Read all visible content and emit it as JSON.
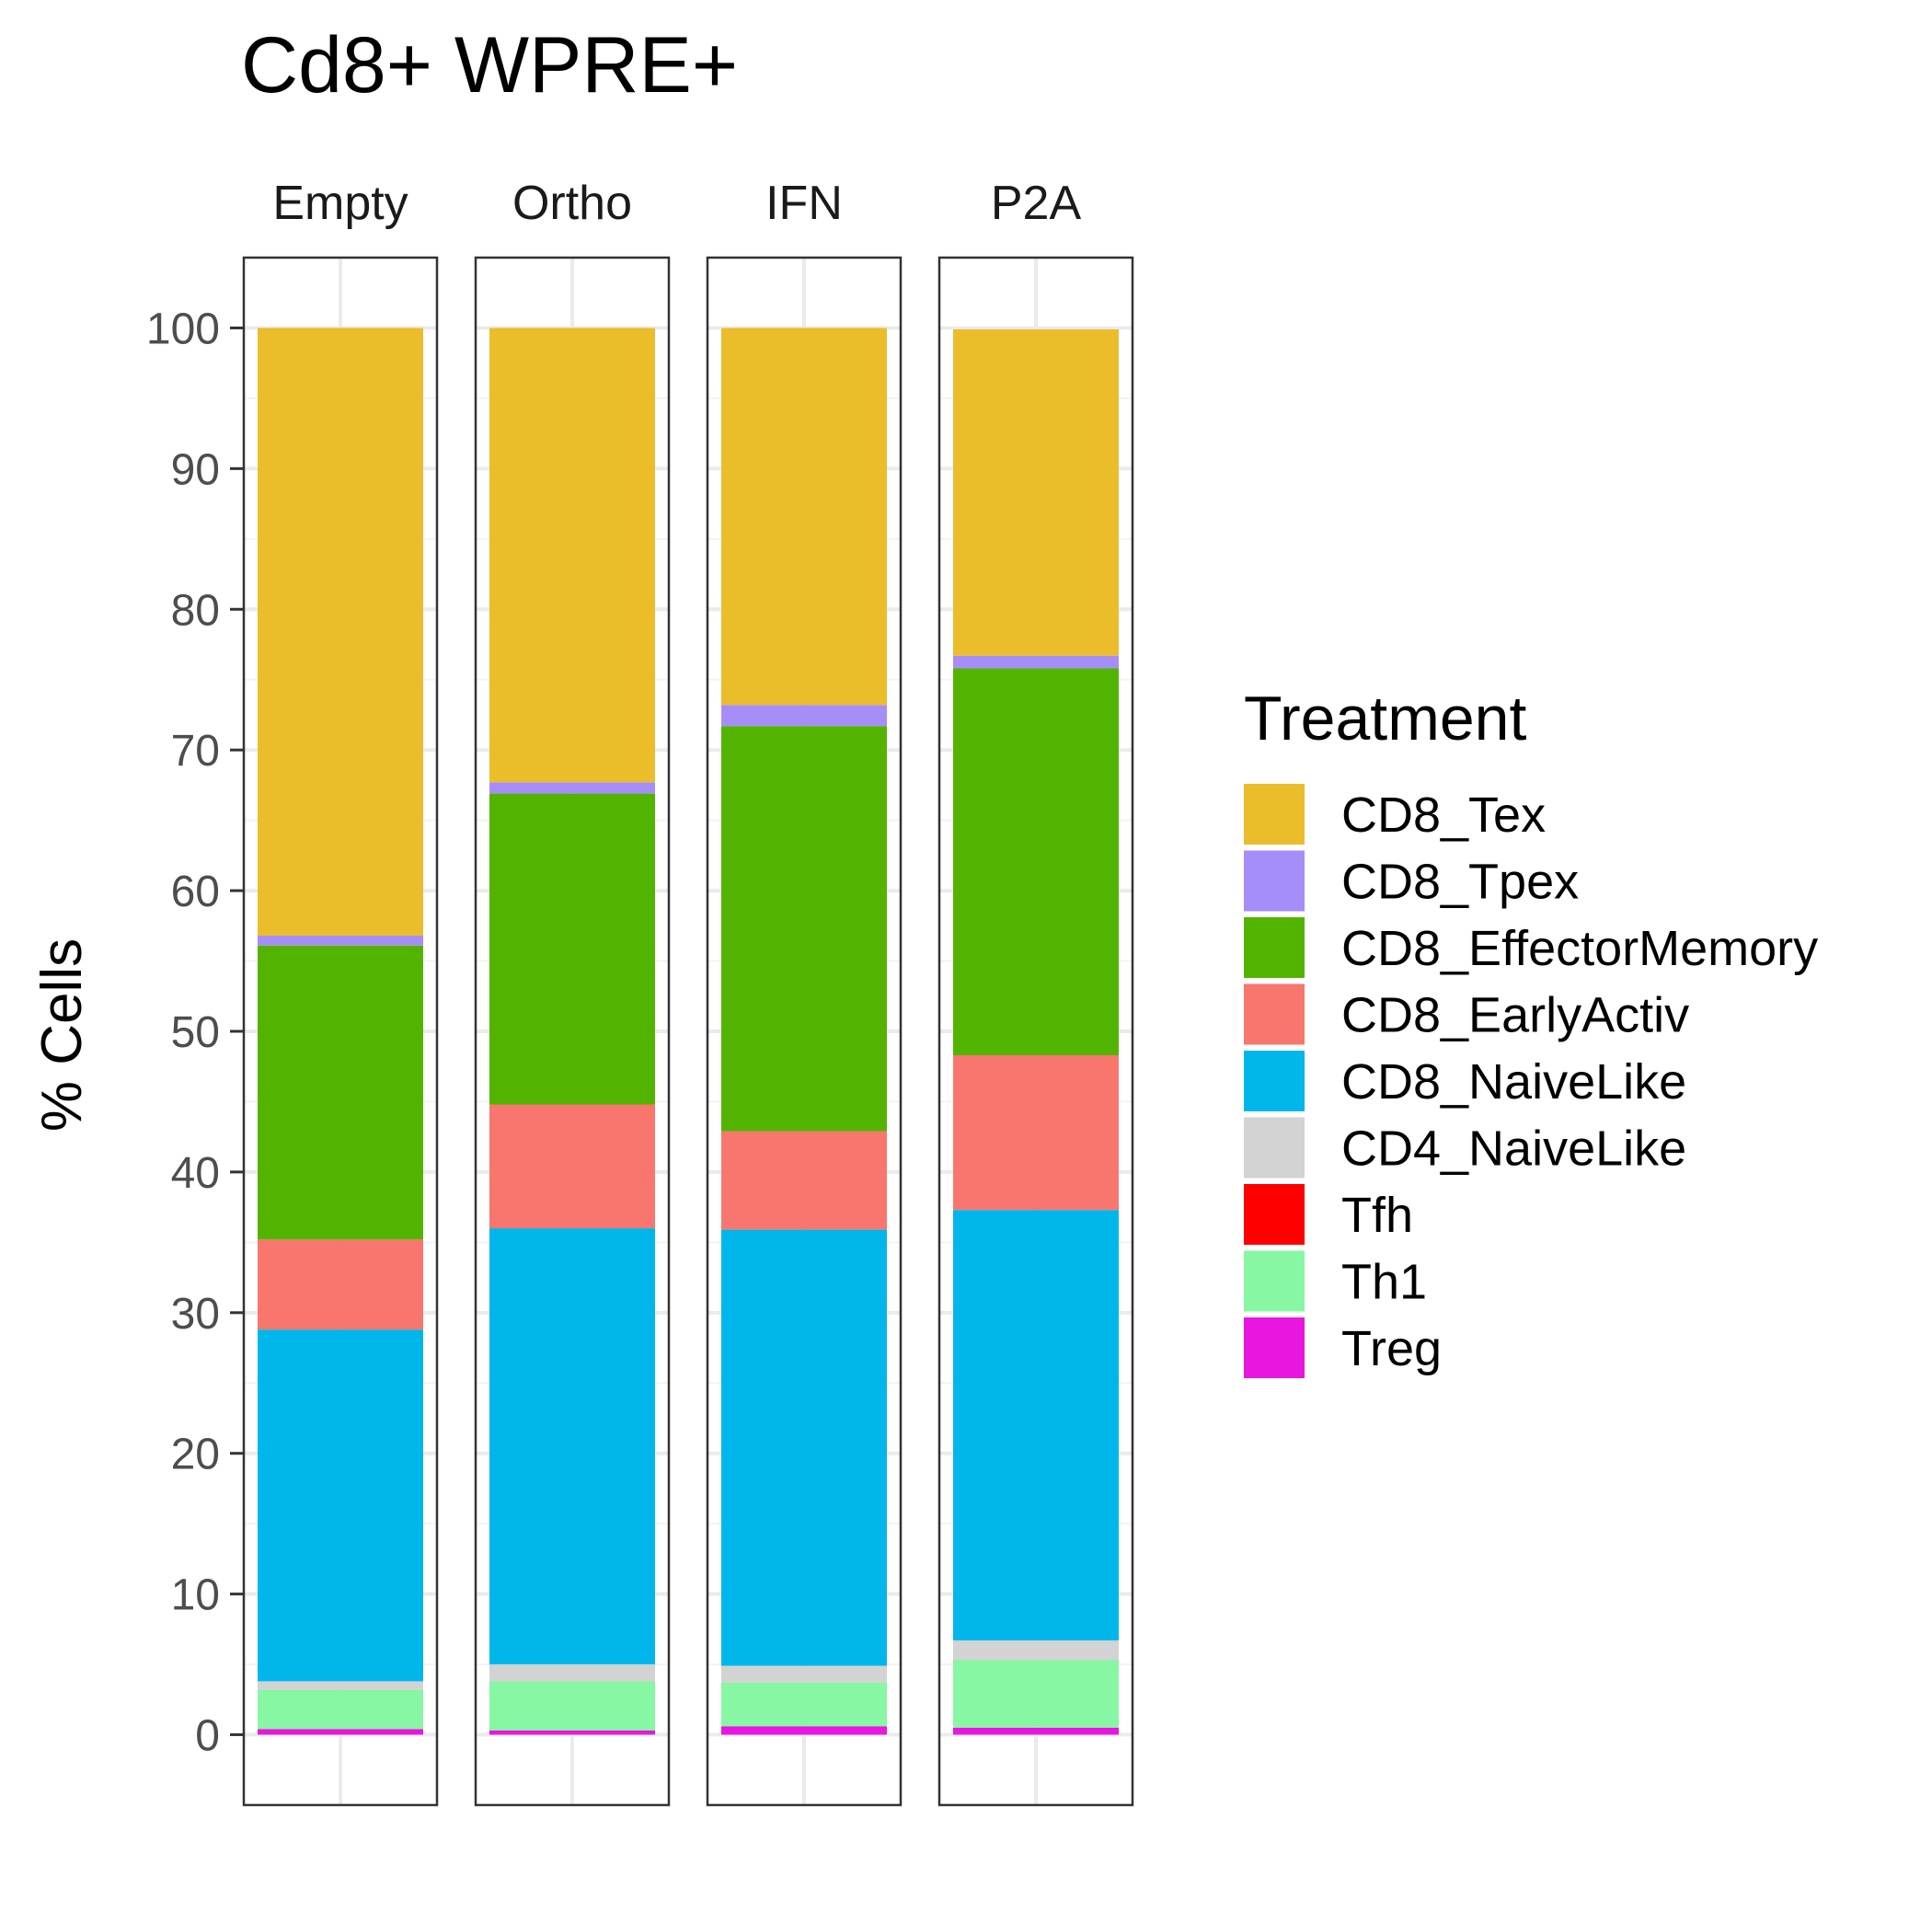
{
  "chart_data": {
    "type": "bar",
    "stacked": true,
    "faceted": true,
    "title": "Cd8+ WPRE+",
    "xlabel": "",
    "ylabel": "% Cells",
    "ylim": [
      -5,
      105
    ],
    "y_ticks": [
      0,
      10,
      20,
      30,
      40,
      50,
      60,
      70,
      80,
      90,
      100
    ],
    "y_tick_labels": [
      "0",
      "10",
      "20",
      "30",
      "40",
      "50",
      "60",
      "70",
      "80",
      "90",
      "100"
    ],
    "grid": true,
    "facets": [
      "Empty",
      "Ortho",
      "IFN",
      "P2A"
    ],
    "legend": {
      "title": "Treatment",
      "position": "right"
    },
    "series": [
      {
        "name": "CD8_Tex",
        "color": "#EBBD2B",
        "values": [
          43.2,
          32.3,
          26.8,
          23.2
        ]
      },
      {
        "name": "CD8_Tpex",
        "color": "#A68EF8",
        "values": [
          0.7,
          0.8,
          1.5,
          0.9
        ]
      },
      {
        "name": "CD8_EffectorMemory",
        "color": "#53B400",
        "values": [
          20.9,
          22.1,
          28.8,
          27.5
        ]
      },
      {
        "name": "CD8_EarlyActiv",
        "color": "#F8766D",
        "values": [
          6.4,
          8.8,
          7.0,
          11.0
        ]
      },
      {
        "name": "CD8_NaiveLike",
        "color": "#00B6EB",
        "values": [
          25.0,
          31.0,
          31.0,
          30.6
        ]
      },
      {
        "name": "CD4_NaiveLike",
        "color": "#D3D3D3",
        "values": [
          0.6,
          1.2,
          1.2,
          1.4
        ]
      },
      {
        "name": "Tfh",
        "color": "#FF0000",
        "values": [
          0.0,
          0.0,
          0.0,
          0.0
        ]
      },
      {
        "name": "Th1",
        "color": "#88F7A4",
        "values": [
          2.8,
          3.5,
          3.1,
          4.8
        ]
      },
      {
        "name": "Treg",
        "color": "#E816DF",
        "values": [
          0.4,
          0.3,
          0.6,
          0.5
        ]
      }
    ]
  }
}
